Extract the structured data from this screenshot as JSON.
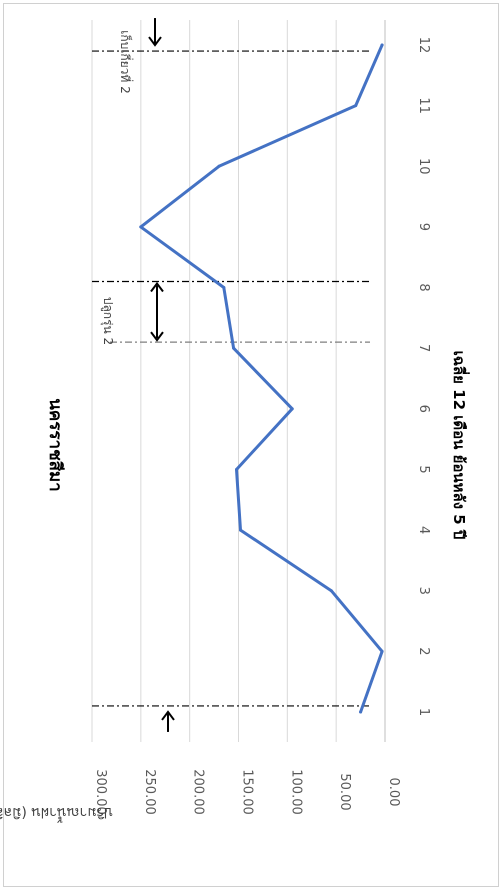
{
  "chart_data": {
    "type": "line",
    "title": "นครราชสีมา",
    "xlabel": "เฉลี่ย 12 เดือน ย้อนหลัง 5 ปี",
    "ylabel": "ปริมาณน้ำฝน (มิลลิเมตร)",
    "x": [
      1,
      2,
      3,
      4,
      5,
      6,
      7,
      8,
      9,
      10,
      11,
      12
    ],
    "x_tick_labels": [
      "1",
      "2",
      "3",
      "4",
      "5",
      "6",
      "7",
      "8",
      "9",
      "10",
      "11",
      "12"
    ],
    "y_tick_labels": [
      "0.00",
      "50.00",
      "100.00",
      "150.00",
      "200.00",
      "250.00",
      "300.00"
    ],
    "ylim": [
      0,
      300
    ],
    "grid": true,
    "orientation": "rotated-90",
    "series": [
      {
        "values": [
          25,
          3,
          55,
          148,
          152,
          95,
          155,
          165,
          250,
          170,
          30,
          3
        ],
        "color": "#4472c4"
      }
    ],
    "annotations": [
      {
        "text": "เก็บเกี่ยวที่ 2",
        "month": 12
      },
      {
        "text": "ปลูกรุ่น 2",
        "from_month": 7,
        "to_month": 8
      }
    ],
    "marker_lines_at_months": [
      1.1,
      7.1,
      8.1,
      11.9
    ]
  }
}
